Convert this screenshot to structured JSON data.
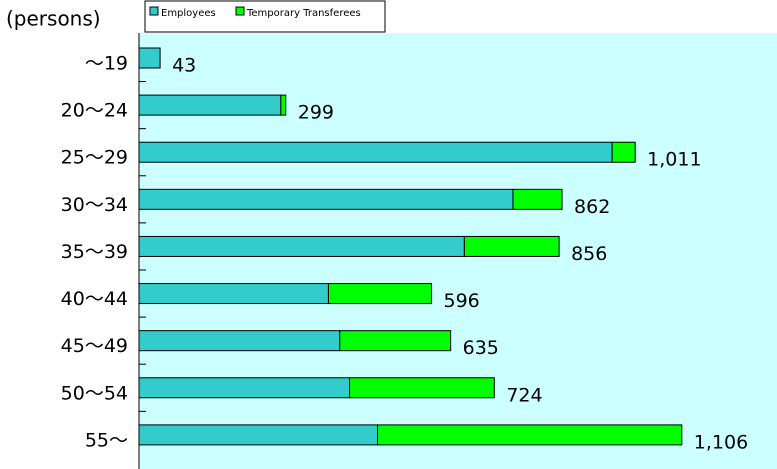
{
  "chart_data": {
    "type": "stacked-bar-horizontal",
    "y_label": "(persons)",
    "categories": [
      "～19",
      "20～24",
      "25～29",
      "30～34",
      "35～39",
      "40～44",
      "45～49",
      "50～54",
      "55～"
    ],
    "series": [
      {
        "name": "Employees",
        "color": "#33cccc",
        "values": [
          43,
          289,
          964,
          762,
          663,
          386,
          409,
          429,
          486
        ]
      },
      {
        "name": "Temporary Transferees",
        "color": "#00ff00",
        "values": [
          0,
          10,
          47,
          100,
          193,
          210,
          226,
          295,
          620
        ]
      }
    ],
    "totals": [
      43,
      299,
      1011,
      862,
      856,
      596,
      635,
      724,
      1106
    ],
    "total_labels": [
      "43",
      "299",
      "1,011",
      "862",
      "856",
      "596",
      "635",
      "724",
      "1,106"
    ],
    "xlim": [
      0,
      1300
    ],
    "legend": "top",
    "background": "#ccffff"
  }
}
